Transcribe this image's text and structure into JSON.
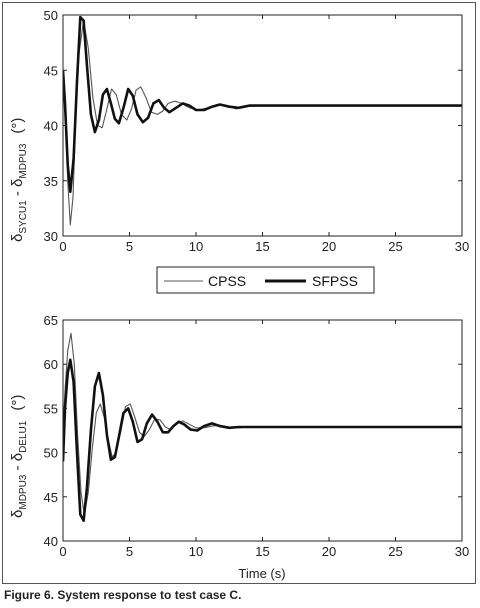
{
  "caption": "Figure 6. System response to test case C.",
  "legend": {
    "items": [
      "CPSS",
      "SFPSS"
    ]
  },
  "chart_data": [
    {
      "type": "line",
      "ylabel": {
        "delta": "δ",
        "sub1": "SYCU1",
        "mid": " - ",
        "delta2": "δ",
        "sub2": "MDPU3",
        "unit": "(°)"
      },
      "xlabel": "",
      "xlim": [
        0,
        30
      ],
      "ylim": [
        30,
        50
      ],
      "xticks": [
        "0",
        "5",
        "10",
        "15",
        "20",
        "25",
        "30"
      ],
      "yticks": [
        "30",
        "35",
        "40",
        "45",
        "50"
      ],
      "grid": false,
      "series": [
        {
          "name": "CPSS",
          "style": "thin",
          "color": "#555555",
          "x": [
            0,
            0.15,
            0.35,
            0.55,
            0.75,
            0.95,
            1.2,
            1.55,
            1.9,
            2.25,
            2.6,
            2.95,
            3.3,
            3.65,
            4.0,
            4.4,
            4.8,
            5.15,
            5.5,
            5.85,
            6.25,
            6.65,
            7.1,
            7.5,
            7.9,
            8.4,
            8.9,
            9.5,
            10.2,
            10.9,
            11.6,
            12.3,
            13.0,
            13.8,
            14.8,
            16,
            18,
            20,
            22,
            24,
            26,
            28,
            30
          ],
          "y": [
            45.0,
            42.0,
            35.0,
            31.0,
            33.5,
            40.5,
            46.5,
            49.5,
            47.0,
            42.5,
            40.0,
            39.8,
            41.5,
            43.3,
            42.8,
            41.0,
            40.5,
            41.5,
            43.2,
            43.5,
            42.5,
            41.2,
            41.0,
            41.3,
            42.0,
            42.2,
            42.0,
            41.6,
            41.4,
            41.6,
            41.9,
            41.8,
            41.5,
            41.7,
            41.8,
            41.8,
            41.8,
            41.8,
            41.8,
            41.8,
            41.8,
            41.8,
            41.8
          ]
        },
        {
          "name": "SFPSS",
          "style": "thick",
          "color": "#111111",
          "x": [
            0,
            0.15,
            0.35,
            0.55,
            0.8,
            1.05,
            1.3,
            1.55,
            1.8,
            2.1,
            2.4,
            2.7,
            3.0,
            3.3,
            3.6,
            3.9,
            4.2,
            4.55,
            4.9,
            5.25,
            5.6,
            6.0,
            6.4,
            6.8,
            7.2,
            7.6,
            8.0,
            8.5,
            9.0,
            9.5,
            10.0,
            10.6,
            11.2,
            11.8,
            12.5,
            13.2,
            14,
            16,
            18,
            20,
            22,
            24,
            26,
            28,
            30
          ],
          "y": [
            45.0,
            42.0,
            36.5,
            34.0,
            37.0,
            44.0,
            49.8,
            49.5,
            45.5,
            41.0,
            39.4,
            40.5,
            42.8,
            43.3,
            42.0,
            40.6,
            40.2,
            41.6,
            43.3,
            42.7,
            41.0,
            40.3,
            40.7,
            42.0,
            42.3,
            41.6,
            41.2,
            41.6,
            42.0,
            41.8,
            41.4,
            41.4,
            41.7,
            41.9,
            41.7,
            41.6,
            41.8,
            41.8,
            41.8,
            41.8,
            41.8,
            41.8,
            41.8,
            41.8,
            41.8
          ]
        }
      ]
    },
    {
      "type": "line",
      "ylabel": {
        "delta": "δ",
        "sub1": "MDPU3",
        "mid": " - ",
        "delta2": "δ",
        "sub2": "DELU1",
        "unit": "(°)"
      },
      "xlabel": "Time (s)",
      "xlim": [
        0,
        30
      ],
      "ylim": [
        40,
        65
      ],
      "xticks": [
        "0",
        "5",
        "10",
        "15",
        "20",
        "25",
        "30"
      ],
      "yticks": [
        "40",
        "45",
        "50",
        "55",
        "60",
        "65"
      ],
      "grid": false,
      "series": [
        {
          "name": "CPSS",
          "style": "thin",
          "color": "#555555",
          "x": [
            0,
            0.15,
            0.35,
            0.6,
            0.85,
            1.1,
            1.35,
            1.6,
            1.9,
            2.2,
            2.5,
            2.8,
            3.1,
            3.4,
            3.7,
            4.0,
            4.35,
            4.7,
            5.05,
            5.4,
            5.75,
            6.1,
            6.5,
            6.9,
            7.3,
            7.7,
            8.1,
            8.5,
            9.0,
            9.5,
            10.0,
            10.6,
            11.2,
            11.8,
            12.5,
            13.2,
            14,
            16,
            18,
            20,
            22,
            24,
            26,
            28,
            30
          ],
          "y": [
            52.5,
            57.0,
            61.5,
            63.5,
            60.0,
            52.0,
            45.5,
            43.0,
            45.5,
            50.5,
            54.5,
            55.5,
            54.0,
            51.5,
            49.5,
            50.0,
            52.5,
            55.2,
            55.5,
            54.0,
            52.3,
            51.8,
            52.6,
            53.8,
            53.7,
            52.9,
            52.6,
            53.2,
            53.6,
            53.2,
            52.8,
            52.8,
            53.0,
            53.1,
            52.9,
            52.8,
            52.9,
            52.9,
            52.9,
            52.9,
            52.9,
            52.9,
            52.9,
            52.9,
            52.9
          ]
        },
        {
          "name": "SFPSS",
          "style": "thick",
          "color": "#111111",
          "x": [
            0,
            0.15,
            0.35,
            0.55,
            0.8,
            1.05,
            1.3,
            1.55,
            1.8,
            2.1,
            2.4,
            2.7,
            3.0,
            3.3,
            3.6,
            3.9,
            4.2,
            4.55,
            4.9,
            5.25,
            5.6,
            5.95,
            6.3,
            6.7,
            7.1,
            7.5,
            7.9,
            8.3,
            8.7,
            9.1,
            9.6,
            10.1,
            10.6,
            11.2,
            11.8,
            12.5,
            13.2,
            14,
            16,
            18,
            20,
            22,
            24,
            26,
            28,
            30
          ],
          "y": [
            49.0,
            55.0,
            59.0,
            60.5,
            58.0,
            50.0,
            43.0,
            42.3,
            46.0,
            52.5,
            57.5,
            59.0,
            56.5,
            52.0,
            49.2,
            49.5,
            51.8,
            54.5,
            55.0,
            53.5,
            51.2,
            51.5,
            53.3,
            54.3,
            53.5,
            52.3,
            52.3,
            53.0,
            53.5,
            53.2,
            52.6,
            52.5,
            53.0,
            53.3,
            53.0,
            52.8,
            52.9,
            52.9,
            52.9,
            52.9,
            52.9,
            52.9,
            52.9,
            52.9,
            52.9,
            52.9
          ]
        }
      ]
    }
  ]
}
